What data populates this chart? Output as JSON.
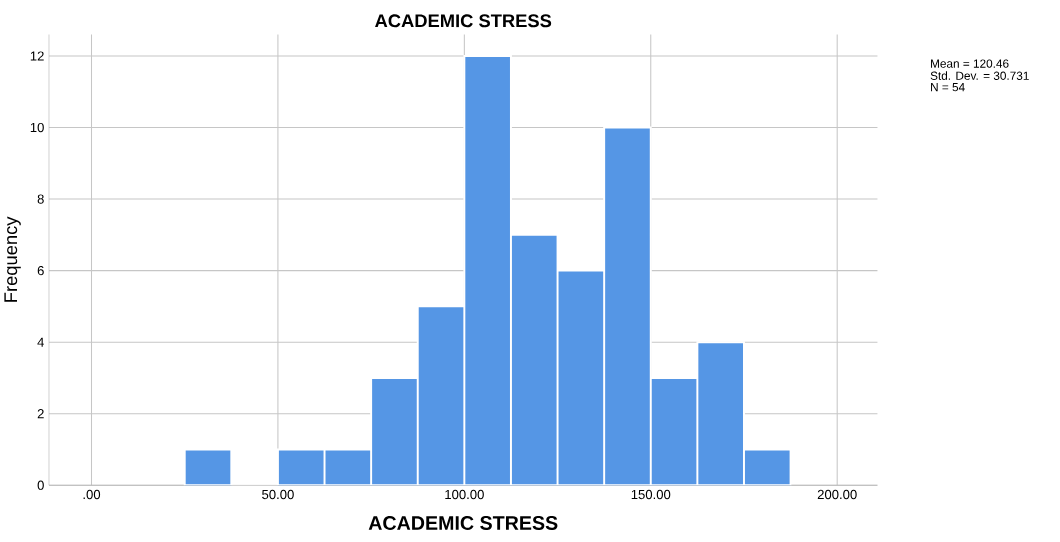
{
  "chart_data": {
    "type": "histogram",
    "title": "ACADEMIC STRESS",
    "xlabel": "ACADEMIC STRESS",
    "ylabel": "Frequency",
    "bins": [
      25,
      37.5,
      50,
      62.5,
      75,
      87.5,
      100,
      112.5,
      125,
      137.5,
      150,
      162.5,
      175,
      187.5
    ],
    "values": [
      1,
      0,
      1,
      1,
      3,
      5,
      12,
      7,
      6,
      10,
      3,
      4,
      1
    ],
    "color": "#5596e5",
    "xlim": [
      -11.4,
      210.8
    ],
    "ylim": [
      0,
      12.6
    ],
    "xticks": [
      {
        "value": 0,
        "label": ".00"
      },
      {
        "value": 50,
        "label": "50.00"
      },
      {
        "value": 100,
        "label": "100.00"
      },
      {
        "value": 150,
        "label": "150.00"
      },
      {
        "value": 200,
        "label": "200.00"
      }
    ],
    "yticks": [
      0,
      2,
      4,
      6,
      8,
      10,
      12
    ],
    "grid": true,
    "annotations": [
      "Mean = 120.46",
      "Std. Dev. = 30.731",
      "N = 54"
    ]
  }
}
